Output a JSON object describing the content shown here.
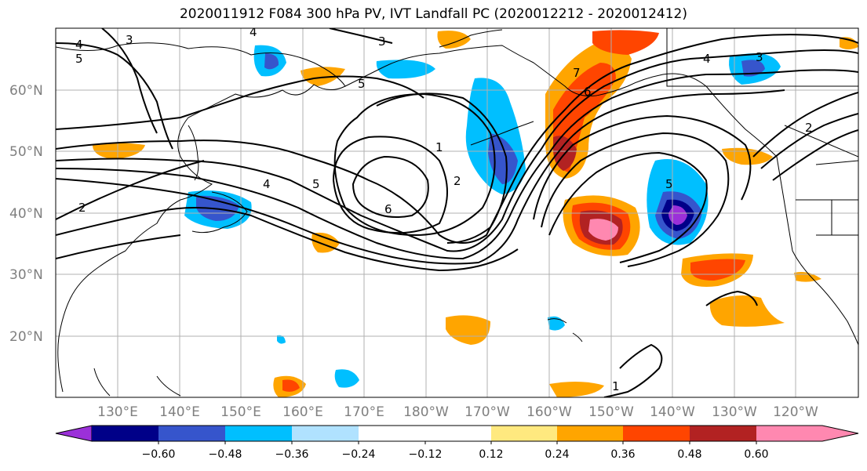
{
  "title": "2020011912 F084 300 hPa PV, IVT Landfall PC (2020012212 - 2020012412)",
  "latitude_labels": [
    "60°N",
    "50°N",
    "40°N",
    "30°N",
    "20°N"
  ],
  "longitude_labels": [
    "130°E",
    "140°E",
    "150°E",
    "160°E",
    "170°E",
    "180°W",
    "170°W",
    "160°W",
    "150°W",
    "140°W",
    "130°W",
    "120°W"
  ],
  "colorbar": {
    "colors": [
      "#9b30d9",
      "#000088",
      "#3655cc",
      "#00bfff",
      "#b0e2ff",
      "#ffffff",
      "#ffffff",
      "#ffe97f",
      "#ffa500",
      "#ff4500",
      "#b22222",
      "#ff88b0"
    ],
    "tick_labels": [
      "−0.60",
      "−0.48",
      "−0.36",
      "−0.24",
      "−0.12",
      "0.12",
      "0.24",
      "0.36",
      "0.48",
      "0.60"
    ]
  },
  "contour_labels": [
    "4",
    "5",
    "3",
    "4",
    "2",
    "3",
    "5",
    "4",
    "5",
    "6",
    "2",
    "1",
    "7",
    "6",
    "5",
    "4",
    "3",
    "2",
    "1"
  ]
}
